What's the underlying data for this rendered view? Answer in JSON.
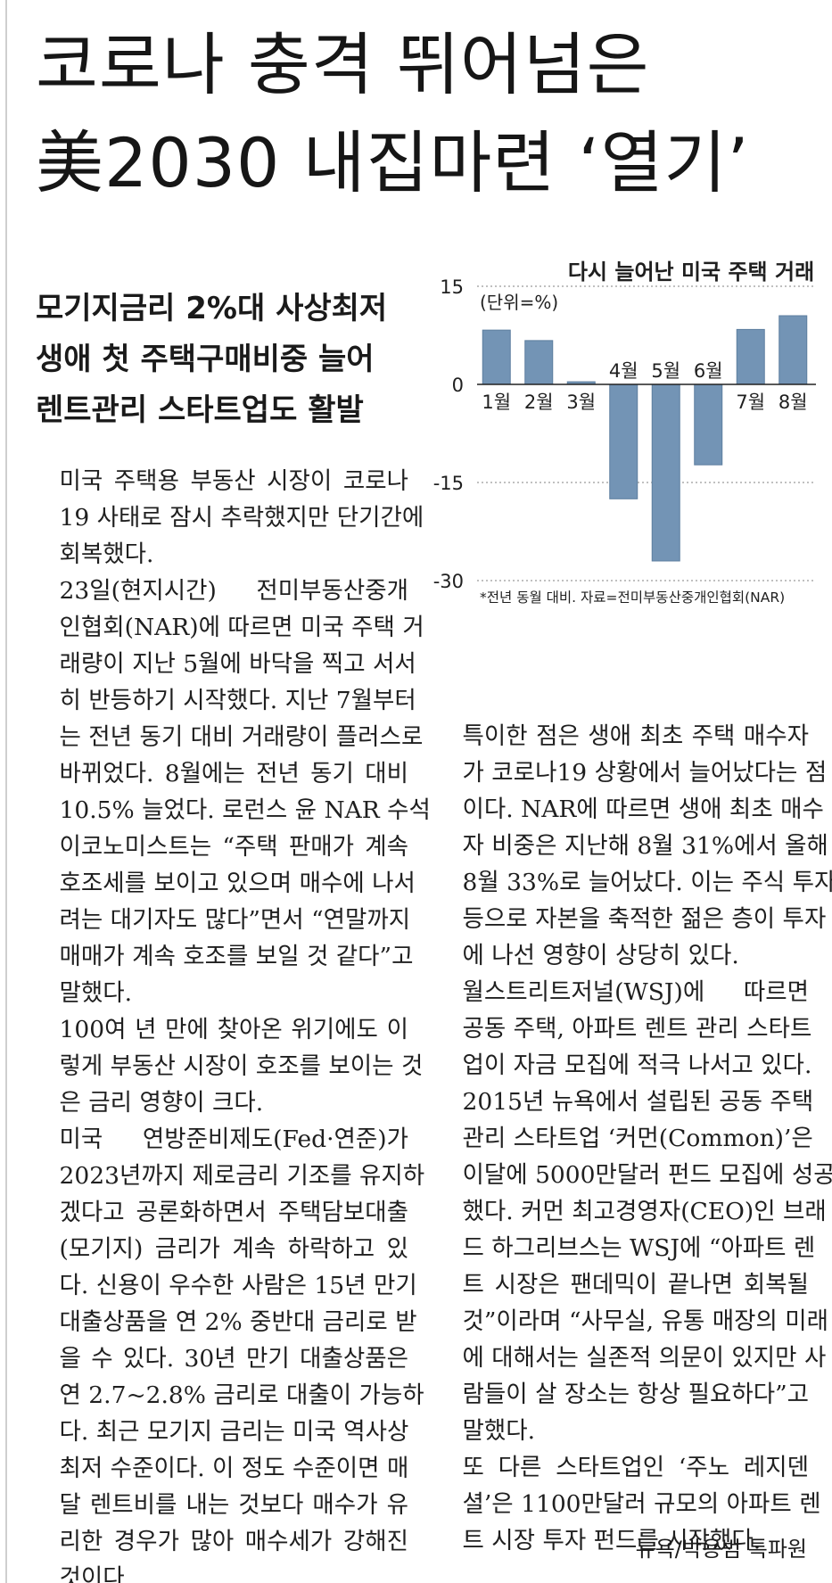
{
  "headline": [
    "코로나 충격 뛰어넘은",
    "美2030 내집마련 ‘열기’"
  ],
  "subheads": [
    "모기지금리 2%대 사상최저",
    "생애 첫 주택구매비중 늘어",
    "렌트관리 스타트업도 활발"
  ],
  "body_left": [
    [
      "미국 주택용 부동산 시장이 코로나",
      "19 사태로 잠시 추락했지만 단기간에",
      "회복했다."
    ],
    [
      "23일(현지시간) 전미부동산중개",
      "인협회(NAR)에 따르면 미국 주택 거",
      "래량이 지난 5월에 바닥을 찍고 서서",
      "히 반등하기 시작했다. 지난 7월부터",
      "는 전년 동기 대비 거래량이 플러스로",
      "바뀌었다. 8월에는 전년 동기 대비",
      "10.5% 늘었다. 로런스 윤 NAR 수석",
      "이코노미스트는 “주택 판매가 계속",
      "호조세를 보이고 있으며 매수에 나서",
      "려는 대기자도 많다”면서 “연말까지",
      "매매가 계속 호조를 보일 것 같다”고",
      "말했다."
    ],
    [
      "100여 년 만에 찾아온 위기에도 이",
      "렇게 부동산 시장이 호조를 보이는 것",
      "은 금리 영향이 크다."
    ],
    [
      "미국 연방준비제도(Fed·연준)가",
      "2023년까지 제로금리 기조를 유지하",
      "겠다고 공론화하면서 주택담보대출",
      "(모기지) 금리가 계속 하락하고 있",
      "다. 신용이 우수한 사람은 15년 만기",
      "대출상품을 연 2% 중반대 금리로 받",
      "을 수 있다. 30년 만기 대출상품은",
      "연 2.7~2.8% 금리로 대출이 가능하",
      "다. 최근 모기지 금리는 미국 역사상",
      "최저 수준이다. 이 정도 수준이면 매",
      "달 렌트비를 내는 것보다 매수가 유",
      "리한 경우가 많아 매수세가 강해진",
      "것이다."
    ]
  ],
  "body_right": [
    [
      "특이한 점은 생애 최초 주택 매수자",
      "가 코로나19 상황에서 늘어났다는 점",
      "이다. NAR에 따르면 생애 최초 매수",
      "자 비중은 지난해 8월 31%에서 올해",
      "8월 33%로 늘어났다. 이는 주식 투자",
      "등으로 자본을 축적한 젊은 층이 투자",
      "에 나선 영향이 상당히 있다."
    ],
    [
      "월스트리트저널(WSJ)에 따르면",
      "공동 주택, 아파트 렌트 관리 스타트",
      "업이 자금 모집에 적극 나서고 있다."
    ],
    [
      "2015년 뉴욕에서 설립된 공동 주택",
      "관리 스타트업 ‘커먼(Common)’은",
      "이달에 5000만달러 펀드 모집에 성공",
      "했다. 커먼 최고경영자(CEO)인 브래",
      "드 하그리브스는 WSJ에 “아파트 렌",
      "트 시장은 팬데믹이 끝나면 회복될",
      "것”이라며 “사무실, 유통 매장의 미래",
      "에 대해서는 실존적 의문이 있지만 사",
      "람들이 살 장소는 항상 필요하다”고",
      "말했다."
    ],
    [
      "또 다른 스타트업인 ‘주노 레지덴",
      "셜’은 1100만달러 규모의 아파트 렌",
      "트 시장 투자 펀드를 시작했다."
    ]
  ],
  "byline": "뉴욕/박용범 특파원",
  "colors": {
    "bar": "#7394b5",
    "bar_stroke": "#5d7e9f",
    "grid": "#9a9a9a",
    "text": "#1f1f1f"
  },
  "chart_data": {
    "type": "bar",
    "title": "다시 늘어난 미국 주택 거래",
    "unit_label": "(단위=%)",
    "categories": [
      "1월",
      "2월",
      "3월",
      "4월",
      "5월",
      "6월",
      "7월",
      "8월"
    ],
    "values": [
      8.3,
      6.7,
      0.4,
      -17.5,
      -27.0,
      -12.3,
      8.4,
      10.5
    ],
    "ylim": [
      -30,
      15
    ],
    "yticks": [
      15,
      0,
      -15,
      -30
    ],
    "ytick_labels": [
      "15",
      "0",
      "-15",
      "-30"
    ],
    "grid": true,
    "note": "*전년 동월 대비. 자료=전미부동산중개인협회(NAR)"
  }
}
